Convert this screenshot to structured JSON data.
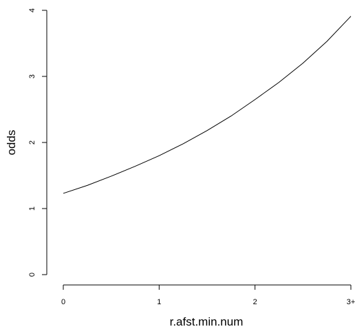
{
  "chart_data": {
    "type": "line",
    "title": "",
    "xlabel": "r.afst.min.num",
    "ylabel": "odds",
    "xlim": [
      0,
      3
    ],
    "ylim": [
      0,
      4
    ],
    "x_ticks": [
      {
        "value": 0,
        "label": "0"
      },
      {
        "value": 1,
        "label": "1"
      },
      {
        "value": 2,
        "label": "2"
      },
      {
        "value": 3,
        "label": "3+"
      }
    ],
    "y_ticks": [
      {
        "value": 0,
        "label": "0"
      },
      {
        "value": 1,
        "label": "1"
      },
      {
        "value": 2,
        "label": "2"
      },
      {
        "value": 3,
        "label": "3"
      },
      {
        "value": 4,
        "label": "4"
      }
    ],
    "grid": false,
    "series": [
      {
        "x": [
          0,
          0.25,
          0.5,
          0.75,
          1,
          1.25,
          1.5,
          1.75,
          2,
          2.25,
          2.5,
          2.75,
          3
        ],
        "y": [
          1.23,
          1.35,
          1.49,
          1.64,
          1.8,
          1.98,
          2.18,
          2.4,
          2.65,
          2.91,
          3.2,
          3.53,
          3.91
        ]
      }
    ]
  }
}
